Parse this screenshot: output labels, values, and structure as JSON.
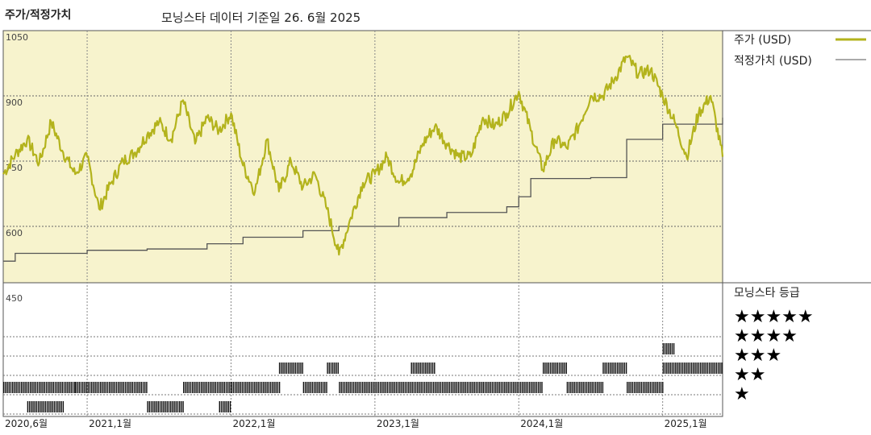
{
  "header": {
    "title": "주가/적정가치",
    "subtitle": "모닝스타 데이터 기준일 26. 6월 2025"
  },
  "legend": {
    "price_label": "주가 (USD)",
    "fair_label": "적정가치 (USD)",
    "rating_title": "모닝스타 등급",
    "stars": [
      "★★★★★",
      "★★★★",
      "★★★",
      "★★",
      "★"
    ]
  },
  "colors": {
    "price": "#b3b31c",
    "fair": "#555555",
    "panel_bg": "#f7f3cd",
    "grid": "#555555"
  },
  "chart_data": {
    "type": "line",
    "title": "주가/적정가치",
    "x_ticks": [
      "2020,6월",
      "2021,1월",
      "2022,1월",
      "2023,1월",
      "2024,1월",
      "2025,1월"
    ],
    "y_ticks": [
      1050,
      900,
      750,
      600,
      450
    ],
    "ylim": [
      450,
      1050
    ],
    "x_range": [
      "2020-06",
      "2025-06"
    ],
    "series": [
      {
        "name": "주가 (USD)",
        "points": [
          [
            "2020-06",
            720
          ],
          [
            "2020-07",
            765
          ],
          [
            "2020-08",
            800
          ],
          [
            "2020-09",
            745
          ],
          [
            "2020-10",
            840
          ],
          [
            "2020-11",
            770
          ],
          [
            "2020-12",
            720
          ],
          [
            "2021-01",
            760
          ],
          [
            "2021-02",
            640
          ],
          [
            "2021-03",
            700
          ],
          [
            "2021-04",
            750
          ],
          [
            "2021-05",
            770
          ],
          [
            "2021-06",
            810
          ],
          [
            "2021-07",
            840
          ],
          [
            "2021-08",
            800
          ],
          [
            "2021-09",
            890
          ],
          [
            "2021-10",
            790
          ],
          [
            "2021-11",
            850
          ],
          [
            "2021-12",
            820
          ],
          [
            "2022-01",
            860
          ],
          [
            "2022-02",
            740
          ],
          [
            "2022-03",
            680
          ],
          [
            "2022-04",
            800
          ],
          [
            "2022-05",
            680
          ],
          [
            "2022-06",
            750
          ],
          [
            "2022-07",
            690
          ],
          [
            "2022-08",
            720
          ],
          [
            "2022-09",
            640
          ],
          [
            "2022-10",
            535
          ],
          [
            "2022-11",
            620
          ],
          [
            "2022-12",
            700
          ],
          [
            "2023-01",
            720
          ],
          [
            "2023-02",
            760
          ],
          [
            "2023-03",
            700
          ],
          [
            "2023-04",
            720
          ],
          [
            "2023-05",
            790
          ],
          [
            "2023-06",
            830
          ],
          [
            "2023-07",
            790
          ],
          [
            "2023-08",
            760
          ],
          [
            "2023-09",
            760
          ],
          [
            "2023-10",
            850
          ],
          [
            "2023-11",
            830
          ],
          [
            "2023-12",
            860
          ],
          [
            "2024-01",
            910
          ],
          [
            "2024-02",
            820
          ],
          [
            "2024-03",
            730
          ],
          [
            "2024-04",
            800
          ],
          [
            "2024-05",
            780
          ],
          [
            "2024-06",
            830
          ],
          [
            "2024-07",
            900
          ],
          [
            "2024-08",
            900
          ],
          [
            "2024-09",
            940
          ],
          [
            "2024-10",
            990
          ],
          [
            "2024-11",
            950
          ],
          [
            "2024-12",
            960
          ],
          [
            "2025-01",
            900
          ],
          [
            "2025-02",
            840
          ],
          [
            "2025-03",
            760
          ],
          [
            "2025-04",
            860
          ],
          [
            "2025-05",
            900
          ],
          [
            "2025-06",
            760
          ]
        ]
      },
      {
        "name": "적정가치 (USD)",
        "points": [
          [
            "2020-06",
            520
          ],
          [
            "2020-07",
            538
          ],
          [
            "2020-12",
            538
          ],
          [
            "2021-01",
            545
          ],
          [
            "2021-06",
            548
          ],
          [
            "2021-11",
            560
          ],
          [
            "2022-02",
            575
          ],
          [
            "2022-07",
            590
          ],
          [
            "2022-10",
            600
          ],
          [
            "2023-03",
            620
          ],
          [
            "2023-07",
            632
          ],
          [
            "2023-12",
            645
          ],
          [
            "2024-01",
            668
          ],
          [
            "2024-02",
            710
          ],
          [
            "2024-07",
            712
          ],
          [
            "2024-10",
            800
          ],
          [
            "2025-01",
            835
          ],
          [
            "2025-06",
            850
          ]
        ]
      }
    ],
    "rating": {
      "title": "모닝스타 등급",
      "levels": [
        5,
        4,
        3,
        2,
        1
      ],
      "segments": [
        {
          "stars": 2,
          "from": "2020-06",
          "to": "2020-12"
        },
        {
          "stars": 1,
          "from": "2020-08",
          "to": "2020-11"
        },
        {
          "stars": 2,
          "from": "2020-12",
          "to": "2021-06"
        },
        {
          "stars": 1,
          "from": "2021-06",
          "to": "2021-09"
        },
        {
          "stars": 2,
          "from": "2021-09",
          "to": "2022-01"
        },
        {
          "stars": 1,
          "from": "2021-12",
          "to": "2022-01"
        },
        {
          "stars": 2,
          "from": "2022-01",
          "to": "2022-05"
        },
        {
          "stars": 3,
          "from": "2022-05",
          "to": "2022-07"
        },
        {
          "stars": 2,
          "from": "2022-07",
          "to": "2022-09"
        },
        {
          "stars": 3,
          "from": "2022-09",
          "to": "2022-10"
        },
        {
          "stars": 2,
          "from": "2022-10",
          "to": "2023-10"
        },
        {
          "stars": 3,
          "from": "2023-04",
          "to": "2023-06"
        },
        {
          "stars": 2,
          "from": "2023-10",
          "to": "2024-03"
        },
        {
          "stars": 3,
          "from": "2024-03",
          "to": "2024-05"
        },
        {
          "stars": 2,
          "from": "2024-05",
          "to": "2024-08"
        },
        {
          "stars": 3,
          "from": "2024-08",
          "to": "2024-10"
        },
        {
          "stars": 2,
          "from": "2024-10",
          "to": "2025-01"
        },
        {
          "stars": 4,
          "from": "2025-01",
          "to": "2025-02"
        },
        {
          "stars": 3,
          "from": "2025-01",
          "to": "2025-06"
        }
      ]
    }
  }
}
